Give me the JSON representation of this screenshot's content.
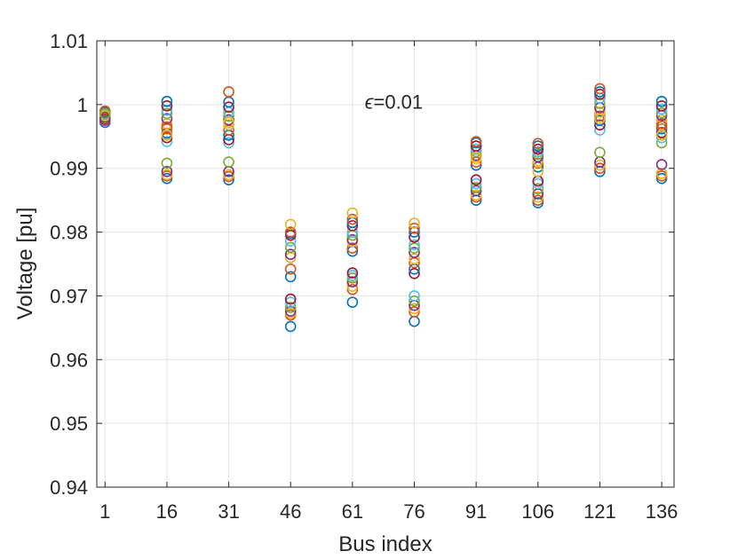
{
  "chart_data": {
    "type": "scatter",
    "title": "",
    "xlabel": "Bus index",
    "ylabel": "Voltage [pu]",
    "xlim": [
      -1,
      139
    ],
    "ylim": [
      0.94,
      1.01
    ],
    "grid": true,
    "marker": "open-circle",
    "x_ticks": [
      1,
      16,
      31,
      46,
      61,
      76,
      91,
      106,
      121,
      136
    ],
    "x_tick_labels": [
      "1",
      "16",
      "31",
      "46",
      "61",
      "76",
      "91",
      "106",
      "121",
      "136"
    ],
    "y_ticks": [
      0.94,
      0.95,
      0.96,
      0.97,
      0.98,
      0.99,
      1.0,
      1.01
    ],
    "y_tick_labels": [
      "0.94",
      "0.95",
      "0.96",
      "0.97",
      "0.98",
      "0.99",
      "1",
      "1.01"
    ],
    "annotation": {
      "symbol": "ϵ",
      "text": "=0.01",
      "x": 64,
      "y": 1.0005
    },
    "colors": [
      "#0072BD",
      "#D95319",
      "#EDB120",
      "#7E2F8E",
      "#77AC30",
      "#4DBEEE",
      "#A2142F"
    ],
    "points": [
      {
        "x": 1,
        "y": [
          0.9972,
          0.9975,
          0.9978,
          0.998,
          0.9982,
          0.9984,
          0.9986,
          0.9988,
          0.999,
          0.9983,
          0.9977,
          0.9986
        ]
      },
      {
        "x": 16,
        "y": [
          0.9884,
          0.9888,
          0.989,
          0.9895,
          0.9908,
          0.9942,
          0.9948,
          0.9955,
          0.9962,
          0.997,
          0.9978,
          0.9986,
          0.9991,
          0.9998,
          1.0005,
          0.9965,
          0.9952
        ]
      },
      {
        "x": 31,
        "y": [
          0.9882,
          0.9887,
          0.989,
          0.9895,
          0.991,
          0.994,
          0.9945,
          0.9952,
          0.996,
          0.9968,
          0.9976,
          0.9982,
          0.9988,
          0.9996,
          1.0004,
          1.002,
          0.9972
        ]
      },
      {
        "x": 46,
        "y": [
          0.9652,
          0.967,
          0.9673,
          0.9676,
          0.9682,
          0.969,
          0.9695,
          0.973,
          0.9742,
          0.976,
          0.9765,
          0.9776,
          0.9786,
          0.9795,
          0.9798,
          0.98,
          0.9812
        ]
      },
      {
        "x": 61,
        "y": [
          0.969,
          0.971,
          0.9715,
          0.9722,
          0.9728,
          0.9732,
          0.9736,
          0.977,
          0.9775,
          0.9785,
          0.9788,
          0.9795,
          0.98,
          0.981,
          0.9815,
          0.982,
          0.983
        ]
      },
      {
        "x": 76,
        "y": [
          0.966,
          0.9675,
          0.968,
          0.9685,
          0.9692,
          0.97,
          0.9735,
          0.9742,
          0.9752,
          0.9758,
          0.9768,
          0.9775,
          0.978,
          0.9792,
          0.98,
          0.9806,
          0.9814
        ]
      },
      {
        "x": 91,
        "y": [
          0.985,
          0.9855,
          0.9858,
          0.9865,
          0.987,
          0.9876,
          0.9882,
          0.9905,
          0.991,
          0.9915,
          0.992,
          0.9926,
          0.993,
          0.9935,
          0.994,
          0.9942,
          0.9918
        ]
      },
      {
        "x": 106,
        "y": [
          0.9846,
          0.985,
          0.9855,
          0.986,
          0.9868,
          0.9876,
          0.988,
          0.9902,
          0.9908,
          0.9912,
          0.9918,
          0.9922,
          0.9926,
          0.993,
          0.9935,
          0.9939,
          0.9895
        ]
      },
      {
        "x": 121,
        "y": [
          0.9895,
          0.99,
          0.9905,
          0.991,
          0.9925,
          0.996,
          0.9968,
          0.9975,
          0.9982,
          0.9988,
          0.9995,
          1.0002,
          1.001,
          1.0016,
          1.002,
          1.0025,
          0.9978
        ]
      },
      {
        "x": 136,
        "y": [
          0.9884,
          0.9888,
          0.9892,
          0.9906,
          0.994,
          0.9948,
          0.9956,
          0.9962,
          0.997,
          0.9976,
          0.9983,
          0.9987,
          0.9993,
          0.9998,
          1.0005,
          0.9966,
          0.9952
        ]
      }
    ]
  }
}
